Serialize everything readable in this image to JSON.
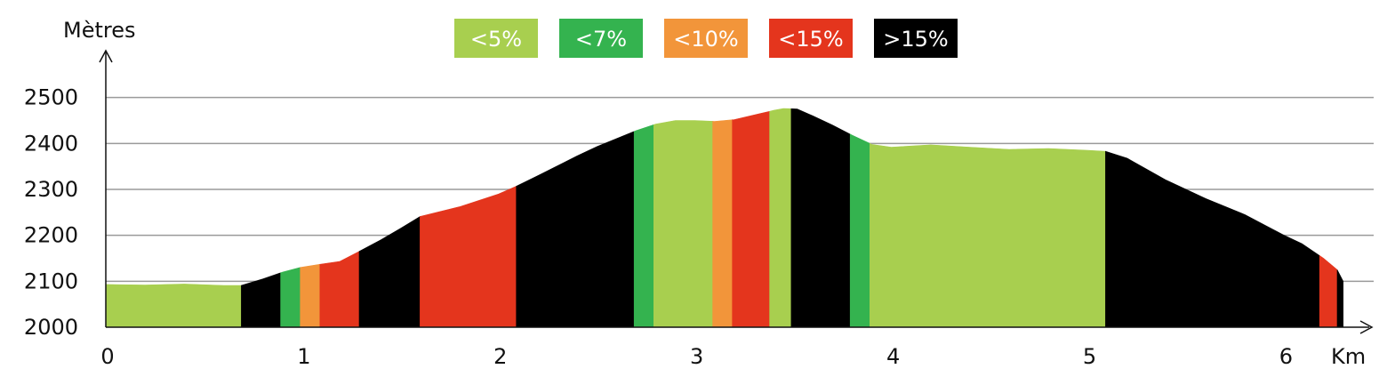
{
  "chart_data": {
    "type": "area",
    "title": "",
    "xlabel": "Km",
    "ylabel": "Mètres",
    "xlim": [
      0,
      6.3
    ],
    "ylim": [
      2000,
      2500
    ],
    "x_ticks": [
      "0",
      "1",
      "2",
      "3",
      "4",
      "5",
      "6"
    ],
    "y_ticks": [
      "2000",
      "2100",
      "2200",
      "2300",
      "2400",
      "2500"
    ],
    "grid": true,
    "legend": [
      {
        "label": "<5%",
        "color": "#a8cf4f"
      },
      {
        "label": "<7%",
        "color": "#34b34f"
      },
      {
        "label": "<10%",
        "color": "#f2953a"
      },
      {
        "label": "<15%",
        "color": "#e4351d"
      },
      {
        "label": ">15%",
        "color": "#000000"
      }
    ],
    "profile": [
      [
        0.0,
        2093
      ],
      [
        0.2,
        2092
      ],
      [
        0.4,
        2094
      ],
      [
        0.6,
        2091
      ],
      [
        0.69,
        2091
      ],
      [
        0.8,
        2105
      ],
      [
        0.9,
        2120
      ],
      [
        0.99,
        2130
      ],
      [
        1.09,
        2137
      ],
      [
        1.19,
        2143
      ],
      [
        1.29,
        2165
      ],
      [
        1.4,
        2190
      ],
      [
        1.5,
        2215
      ],
      [
        1.6,
        2241
      ],
      [
        1.8,
        2262
      ],
      [
        2.0,
        2290
      ],
      [
        2.09,
        2307
      ],
      [
        2.2,
        2330
      ],
      [
        2.4,
        2373
      ],
      [
        2.5,
        2393
      ],
      [
        2.7,
        2428
      ],
      [
        2.8,
        2442
      ],
      [
        2.9,
        2450
      ],
      [
        3.0,
        2450
      ],
      [
        3.1,
        2448
      ],
      [
        3.2,
        2452
      ],
      [
        3.4,
        2472
      ],
      [
        3.45,
        2476
      ],
      [
        3.52,
        2475
      ],
      [
        3.6,
        2460
      ],
      [
        3.7,
        2440
      ],
      [
        3.8,
        2418
      ],
      [
        3.9,
        2398
      ],
      [
        4.0,
        2392
      ],
      [
        4.2,
        2397
      ],
      [
        4.4,
        2392
      ],
      [
        4.6,
        2387
      ],
      [
        4.8,
        2389
      ],
      [
        5.0,
        2385
      ],
      [
        5.09,
        2383
      ],
      [
        5.2,
        2368
      ],
      [
        5.4,
        2320
      ],
      [
        5.6,
        2280
      ],
      [
        5.8,
        2245
      ],
      [
        6.0,
        2200
      ],
      [
        6.09,
        2182
      ],
      [
        6.2,
        2150
      ],
      [
        6.27,
        2125
      ],
      [
        6.3,
        2100
      ]
    ],
    "segments": [
      {
        "from": 0.0,
        "to": 0.69,
        "class": "<5%"
      },
      {
        "from": 0.69,
        "to": 0.89,
        "class": ">15%"
      },
      {
        "from": 0.89,
        "to": 0.99,
        "class": "<7%"
      },
      {
        "from": 0.99,
        "to": 1.09,
        "class": "<10%"
      },
      {
        "from": 1.09,
        "to": 1.29,
        "class": "<15%"
      },
      {
        "from": 1.29,
        "to": 1.6,
        "class": ">15%"
      },
      {
        "from": 1.6,
        "to": 2.09,
        "class": "<15%"
      },
      {
        "from": 2.09,
        "to": 2.69,
        "class": ">15%"
      },
      {
        "from": 2.69,
        "to": 2.79,
        "class": "<7%"
      },
      {
        "from": 2.79,
        "to": 3.09,
        "class": "<5%"
      },
      {
        "from": 3.09,
        "to": 3.19,
        "class": "<10%"
      },
      {
        "from": 3.19,
        "to": 3.38,
        "class": "<15%"
      },
      {
        "from": 3.38,
        "to": 3.49,
        "class": "<5%"
      },
      {
        "from": 3.49,
        "to": 3.79,
        "class": ">15%"
      },
      {
        "from": 3.79,
        "to": 3.89,
        "class": "<7%"
      },
      {
        "from": 3.89,
        "to": 5.09,
        "class": "<5%"
      },
      {
        "from": 5.09,
        "to": 6.18,
        "class": ">15%"
      },
      {
        "from": 6.18,
        "to": 6.27,
        "class": "<15%"
      },
      {
        "from": 6.27,
        "to": 6.3,
        "class": ">15%"
      }
    ]
  }
}
